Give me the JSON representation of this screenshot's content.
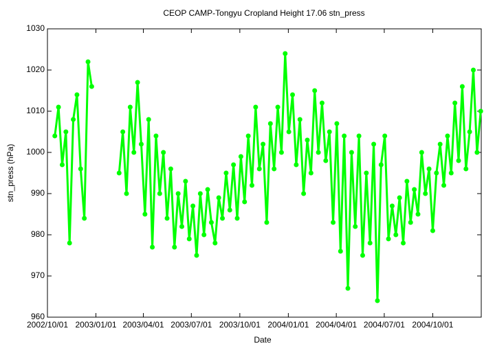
{
  "chart_data": {
    "type": "line",
    "title": "CEOP CAMP-Tongyu Cropland Height 17.06 stn_press",
    "x_label": "Date",
    "y_label": "stn_press (hPa)",
    "x": [
      "2002/10/15",
      "2002/10/22",
      "2002/10/29",
      "2002/11/05",
      "2002/11/12",
      "2002/11/19",
      "2002/11/26",
      "2002/12/03",
      "2002/12/10",
      "2002/12/17",
      "2002/12/24",
      "2003/01/15",
      "2003/02/14",
      "2003/02/21",
      "2003/02/28",
      "2003/03/07",
      "2003/03/14",
      "2003/03/21",
      "2003/03/28",
      "2003/04/04",
      "2003/04/11",
      "2003/04/18",
      "2003/04/25",
      "2003/05/02",
      "2003/05/09",
      "2003/05/16",
      "2003/05/23",
      "2003/05/30",
      "2003/06/06",
      "2003/06/13",
      "2003/06/20",
      "2003/06/27",
      "2003/07/04",
      "2003/07/11",
      "2003/07/18",
      "2003/07/25",
      "2003/08/01",
      "2003/08/08",
      "2003/08/15",
      "2003/08/22",
      "2003/08/29",
      "2003/09/05",
      "2003/09/12",
      "2003/09/19",
      "2003/09/26",
      "2003/10/03",
      "2003/10/10",
      "2003/10/17",
      "2003/10/24",
      "2003/10/31",
      "2003/11/07",
      "2003/11/14",
      "2003/11/21",
      "2003/11/28",
      "2003/12/05",
      "2003/12/12",
      "2003/12/19",
      "2003/12/26",
      "2004/01/02",
      "2004/01/09",
      "2004/01/16",
      "2004/01/23",
      "2004/01/30",
      "2004/02/06",
      "2004/02/13",
      "2004/02/20",
      "2004/02/27",
      "2004/03/05",
      "2004/03/12",
      "2004/03/19",
      "2004/03/26",
      "2004/04/02",
      "2004/04/09",
      "2004/04/16",
      "2004/04/23",
      "2004/04/30",
      "2004/05/07",
      "2004/05/14",
      "2004/05/21",
      "2004/05/28",
      "2004/06/04",
      "2004/06/11",
      "2004/06/18",
      "2004/06/25",
      "2004/07/02",
      "2004/07/09",
      "2004/07/16",
      "2004/07/23",
      "2004/07/30",
      "2004/08/06",
      "2004/08/13",
      "2004/08/20",
      "2004/08/27",
      "2004/09/03",
      "2004/09/10",
      "2004/09/17",
      "2004/09/24",
      "2004/10/01",
      "2004/10/08",
      "2004/10/15",
      "2004/10/22",
      "2004/10/29",
      "2004/11/05",
      "2004/11/12",
      "2004/11/19",
      "2004/11/26",
      "2004/12/03",
      "2004/12/10",
      "2004/12/17",
      "2004/12/24",
      "2004/12/31"
    ],
    "series": [
      {
        "name": "stn_press",
        "color": "#00ff00",
        "values": [
          1004,
          1011,
          997,
          1005,
          978,
          1008,
          1014,
          996,
          984,
          1022,
          1016,
          null,
          995,
          1005,
          990,
          1011,
          1000,
          1017,
          1002,
          985,
          1008,
          977,
          1004,
          990,
          1000,
          984,
          996,
          977,
          990,
          982,
          993,
          979,
          987,
          975,
          990,
          980,
          991,
          983,
          978,
          989,
          984,
          995,
          986,
          997,
          984,
          999,
          988,
          1004,
          992,
          1011,
          996,
          1002,
          983,
          1007,
          996,
          1011,
          1000,
          1024,
          1005,
          1014,
          997,
          1008,
          990,
          1003,
          995,
          1015,
          1000,
          1012,
          998,
          1005,
          983,
          1007,
          976,
          1004,
          967,
          1000,
          982,
          1004,
          975,
          995,
          978,
          1002,
          964,
          997,
          1004,
          979,
          987,
          980,
          989,
          978,
          993,
          983,
          991,
          985,
          1000,
          990,
          996,
          981,
          995,
          1002,
          992,
          1004,
          995,
          1012,
          998,
          1016,
          996,
          1005,
          1020,
          1000,
          1010
        ]
      }
    ],
    "xlim": [
      "2002/10/01",
      "2005/01/01"
    ],
    "xticks": [
      "2002/10/01",
      "2003/01/01",
      "2003/04/01",
      "2003/07/01",
      "2003/10/01",
      "2004/01/01",
      "2004/04/01",
      "2004/07/01",
      "2004/10/01"
    ],
    "ylim": [
      960,
      1030
    ],
    "yticks": [
      960,
      970,
      980,
      990,
      1000,
      1010,
      1020,
      1030
    ],
    "grid": false
  }
}
